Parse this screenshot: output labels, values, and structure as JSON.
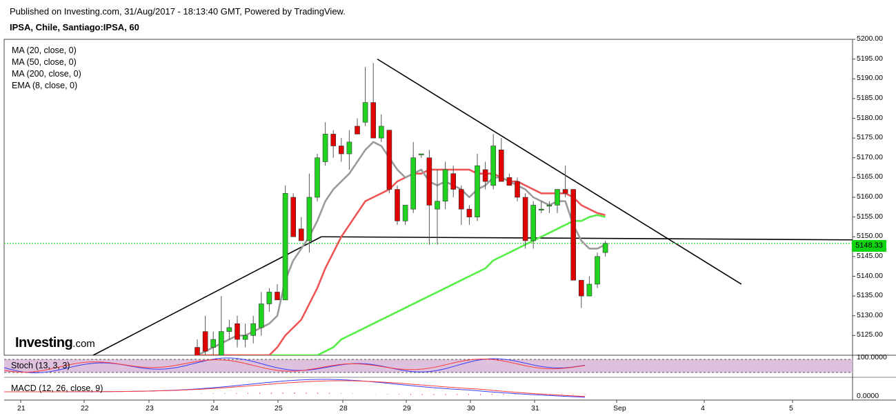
{
  "header": {
    "published": "Published on Investing.com, 31/Aug/2017 - 18:13:40 GMT, Powered by TradingView.",
    "symbol": "IPSA, Chile, Santiago:IPSA, 60"
  },
  "legend": [
    "MA (20, close, 0)",
    "MA (50, close, 0)",
    "MA (200, close, 0)",
    "EMA (8, close, 0)"
  ],
  "indicators": {
    "stoch": "Stoch (13, 3, 3)",
    "macd": "MACD (12, 26, close, 9)"
  },
  "logo": {
    "brand": "Investing",
    "suffix": ".com"
  },
  "colors": {
    "up": "#1fd31f",
    "down": "#e00000",
    "ma_gray": "#9a9a9a",
    "ma_red": "#ef5555",
    "ma_green": "#55ee44",
    "current": "#11d411",
    "trendline": "#000000",
    "stoch_band": "#d7b6d7"
  },
  "chart_data": {
    "type": "candlestick",
    "y_axis": {
      "min": 5120,
      "max": 5200,
      "ticks": [
        "5200.00",
        "5195.00",
        "5190.00",
        "5185.00",
        "5180.00",
        "5175.00",
        "5170.00",
        "5165.00",
        "5160.00",
        "5155.00",
        "5150.00",
        "5145.00",
        "5140.00",
        "5135.00",
        "5130.00",
        "5125.00"
      ]
    },
    "x_axis": {
      "tick_labels": [
        "21",
        "22",
        "23",
        "24",
        "25",
        "28",
        "29",
        "30",
        "31",
        "Sep",
        "4",
        "5"
      ]
    },
    "current_price": 5148.33,
    "current_price_label": "5148.33",
    "candles": [
      {
        "o": 5122,
        "h": 5124,
        "l": 5116,
        "c": 5118
      },
      {
        "o": 5126,
        "h": 5130,
        "l": 5120,
        "c": 5121
      },
      {
        "o": 5122,
        "h": 5126,
        "l": 5118,
        "c": 5124
      },
      {
        "o": 5120,
        "h": 5135,
        "l": 5118,
        "c": 5126
      },
      {
        "o": 5126,
        "h": 5129,
        "l": 5124,
        "c": 5127
      },
      {
        "o": 5128,
        "h": 5130,
        "l": 5122,
        "c": 5124
      },
      {
        "o": 5124,
        "h": 5128,
        "l": 5122,
        "c": 5125
      },
      {
        "o": 5125,
        "h": 5130,
        "l": 5123,
        "c": 5128
      },
      {
        "o": 5127,
        "h": 5136,
        "l": 5125,
        "c": 5133
      },
      {
        "o": 5133,
        "h": 5137,
        "l": 5131,
        "c": 5136
      },
      {
        "o": 5136,
        "h": 5138,
        "l": 5134,
        "c": 5134
      },
      {
        "o": 5134,
        "h": 5163,
        "l": 5134,
        "c": 5161
      },
      {
        "o": 5160,
        "h": 5161,
        "l": 5150,
        "c": 5150
      },
      {
        "o": 5152,
        "h": 5155,
        "l": 5149,
        "c": 5149
      },
      {
        "o": 5149,
        "h": 5166,
        "l": 5146,
        "c": 5160
      },
      {
        "o": 5160,
        "h": 5171,
        "l": 5159,
        "c": 5170
      },
      {
        "o": 5169,
        "h": 5179,
        "l": 5168,
        "c": 5176
      },
      {
        "o": 5176,
        "h": 5177,
        "l": 5170,
        "c": 5173
      },
      {
        "o": 5173,
        "h": 5175,
        "l": 5169,
        "c": 5171
      },
      {
        "o": 5171,
        "h": 5177,
        "l": 5167,
        "c": 5174
      },
      {
        "o": 5178,
        "h": 5180,
        "l": 5176,
        "c": 5176
      },
      {
        "o": 5179,
        "h": 5193,
        "l": 5178,
        "c": 5184
      },
      {
        "o": 5184,
        "h": 5194,
        "l": 5175,
        "c": 5175
      },
      {
        "o": 5175,
        "h": 5181,
        "l": 5174,
        "c": 5178
      },
      {
        "o": 5177,
        "h": 5177,
        "l": 5161,
        "c": 5162
      },
      {
        "o": 5162,
        "h": 5163,
        "l": 5153,
        "c": 5154
      },
      {
        "o": 5154,
        "h": 5158,
        "l": 5153,
        "c": 5158
      },
      {
        "o": 5157,
        "h": 5174,
        "l": 5156,
        "c": 5170
      },
      {
        "o": 5171,
        "h": 5171,
        "l": 5170,
        "c": 5171
      },
      {
        "o": 5170,
        "h": 5172,
        "l": 5148,
        "c": 5158
      },
      {
        "o": 5157,
        "h": 5167,
        "l": 5148,
        "c": 5159
      },
      {
        "o": 5159,
        "h": 5169,
        "l": 5157,
        "c": 5167
      },
      {
        "o": 5166,
        "h": 5168,
        "l": 5160,
        "c": 5162
      },
      {
        "o": 5162,
        "h": 5163,
        "l": 5153,
        "c": 5157
      },
      {
        "o": 5157,
        "h": 5158,
        "l": 5153,
        "c": 5155
      },
      {
        "o": 5155,
        "h": 5171,
        "l": 5154,
        "c": 5168
      },
      {
        "o": 5167,
        "h": 5169,
        "l": 5162,
        "c": 5164
      },
      {
        "o": 5163,
        "h": 5176,
        "l": 5162,
        "c": 5173
      },
      {
        "o": 5172,
        "h": 5175,
        "l": 5164,
        "c": 5164
      },
      {
        "o": 5165,
        "h": 5166,
        "l": 5163,
        "c": 5163
      },
      {
        "o": 5164,
        "h": 5165,
        "l": 5159,
        "c": 5160
      },
      {
        "o": 5160,
        "h": 5161,
        "l": 5147,
        "c": 5149
      },
      {
        "o": 5149,
        "h": 5159,
        "l": 5147,
        "c": 5158
      },
      {
        "o": 5157,
        "h": 5159,
        "l": 5156,
        "c": 5157
      },
      {
        "o": 5158,
        "h": 5159,
        "l": 5156,
        "c": 5158
      },
      {
        "o": 5158,
        "h": 5162,
        "l": 5156,
        "c": 5162
      },
      {
        "o": 5162,
        "h": 5168,
        "l": 5160,
        "c": 5161
      },
      {
        "o": 5162,
        "h": 5162,
        "l": 5139,
        "c": 5139
      },
      {
        "o": 5139,
        "h": 5139,
        "l": 5132,
        "c": 5135
      },
      {
        "o": 5135,
        "h": 5140,
        "l": 5135,
        "c": 5138
      },
      {
        "o": 5138,
        "h": 5146,
        "l": 5137,
        "c": 5145
      },
      {
        "o": 5146,
        "h": 5149,
        "l": 5145,
        "c": 5148.33
      }
    ],
    "ma_gray": [
      5120,
      5121,
      5122,
      5123,
      5124,
      5125,
      5125,
      5126,
      5127,
      5128,
      5130,
      5139,
      5144,
      5147,
      5150,
      5154,
      5159,
      5162,
      5164,
      5166,
      5169,
      5172,
      5174,
      5173,
      5170,
      5167,
      5165,
      5166,
      5167,
      5164,
      5163,
      5164,
      5163,
      5162,
      5160,
      5162,
      5163,
      5165,
      5165,
      5164,
      5163,
      5162,
      5160,
      5159,
      5158,
      5159,
      5159,
      5153,
      5149,
      5147,
      5147,
      5148
    ],
    "ma_red": [
      5120,
      5120,
      5120,
      5120,
      5120,
      5120,
      5120,
      5120,
      5120,
      5120,
      5122,
      5125,
      5127,
      5129,
      5133,
      5137,
      5142,
      5146,
      5150,
      5153,
      5156,
      5159,
      5160,
      5161,
      5162,
      5164,
      5165,
      5166,
      5166,
      5167,
      5167,
      5167,
      5167,
      5167,
      5167,
      5166,
      5166,
      5166,
      5165,
      5164,
      5164,
      5163,
      5162,
      5161,
      5161,
      5161,
      5161,
      5160,
      5158,
      5157,
      5156,
      5155.5
    ],
    "ma_green": [
      5120,
      5120,
      5120,
      5120,
      5120,
      5120,
      5120,
      5120,
      5120,
      5120,
      5120,
      5120,
      5120,
      5120,
      5120,
      5120,
      5121,
      5122,
      5124,
      5125,
      5126,
      5127,
      5128,
      5129,
      5130,
      5131,
      5132,
      5133,
      5134,
      5135,
      5136,
      5137,
      5138,
      5139,
      5140,
      5141,
      5142,
      5144,
      5145,
      5146,
      5147,
      5148,
      5149,
      5150,
      5151,
      5152,
      5153,
      5154,
      5154,
      5155,
      5155.5,
      5155
    ],
    "trendlines": [
      {
        "from": {
          "i": -13,
          "p": 5120
        },
        "to": {
          "i": 15.5,
          "p": 5150
        }
      },
      {
        "from": {
          "i": 15.5,
          "p": 5150
        },
        "to": {
          "i": 100,
          "p": 5149
        }
      },
      {
        "from": {
          "i": 22.5,
          "p": 5195
        },
        "to": {
          "i": 68,
          "p": 5138
        }
      }
    ]
  }
}
